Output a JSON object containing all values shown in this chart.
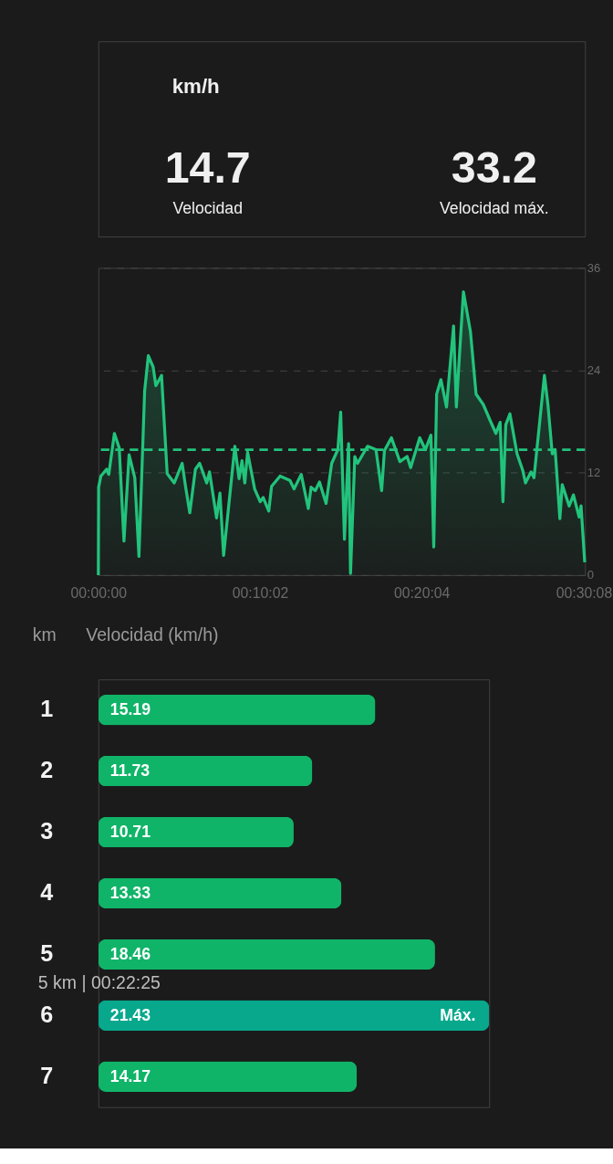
{
  "chart_data": [
    {
      "type": "area",
      "title": "km/h",
      "annotations": [
        "14.7",
        "Velocidad",
        "33.2",
        "Velocidad máx."
      ],
      "x": [
        0,
        0.0003,
        0.0026,
        0.0085,
        0.0108,
        0.0166,
        0.0216,
        0.0265,
        0.0318,
        0.0377,
        0.042,
        0.0479,
        0.0517,
        0.0567,
        0.0595,
        0.0654,
        0.0712,
        0.0785,
        0.0867,
        0.0902,
        0.0946,
        0.1004,
        0.1048,
        0.1121,
        0.115,
        0.1223,
        0.1258,
        0.1296,
        0.1412,
        0.1456,
        0.1486,
        0.1515,
        0.1544,
        0.1617,
        0.1675,
        0.1705,
        0.1763,
        0.1792,
        0.188,
        0.1982,
        0.2025,
        0.2099,
        0.2172,
        0.2201,
        0.2244,
        0.2288,
        0.2356,
        0.2414,
        0.2478,
        0.2507,
        0.2546,
        0.2589,
        0.2609,
        0.2653,
        0.2682,
        0.2785,
        0.2872,
        0.2931,
        0.296,
        0.3032,
        0.312,
        0.3194,
        0.3231,
        0.3325,
        0.3383,
        0.3441,
        0.347,
        0.35,
        0.3544,
        0.3602,
        0.3675,
        0.3704,
        0.3733,
        0.3777,
        0.385,
        0.3908,
        0.3982,
        0.4054,
        0.4113,
        0.4157,
        0.4186,
        0.4215,
        0.4258,
        0.4332,
        0.439,
        0.4419,
        0.4477,
        0.4507,
        0.4615,
        0.4652,
        0.4696,
        0.4726,
        0.4775,
        0.4799,
        0.4871,
        0.4915,
        0.4974,
        0.4994,
        0.5032
      ],
      "series": [
        {
          "color": "#22c37c",
          "values": [
            0,
            10.3,
            11.6,
            12.4,
            11.8,
            16.6,
            14.9,
            4.0,
            14.1,
            11.4,
            2.2,
            21.6,
            25.7,
            24.4,
            22.2,
            23.4,
            11.9,
            10.8,
            13.1,
            10.4,
            7.3,
            12.4,
            13.1,
            10.8,
            12.1,
            6.7,
            9.6,
            2.3,
            15.1,
            11.3,
            13.4,
            10.8,
            14.4,
            10.1,
            8.6,
            9.1,
            7.5,
            10.4,
            11.6,
            11.1,
            10.1,
            11.8,
            7.8,
            10.3,
            9.9,
            10.9,
            8.4,
            13.1,
            14.7,
            19.1,
            4.2,
            15.4,
            0.2,
            13.9,
            13.1,
            15.1,
            14.7,
            9.9,
            14.6,
            16.1,
            13.3,
            13.9,
            12.6,
            16.1,
            14.7,
            16.4,
            3.3,
            21.2,
            22.9,
            19.7,
            29.2,
            19.7,
            25.2,
            33.2,
            28.5,
            21.2,
            20.0,
            18.1,
            16.6,
            17.9,
            8.6,
            17.6,
            18.9,
            14.2,
            12.3,
            10.8,
            12.1,
            11.4,
            23.4,
            19.9,
            14.2,
            14.7,
            6.6,
            10.6,
            8.1,
            9.4,
            6.8,
            8.1,
            1.5
          ]
        }
      ],
      "xlim": [
        0,
        0.5035
      ],
      "xticks": [
        {
          "value": 0,
          "label": "00:00:00"
        },
        {
          "value": 0.16722,
          "label": "00:10:02"
        },
        {
          "value": 0.33444,
          "label": "00:20:04"
        },
        {
          "value": 0.50222,
          "label": "00:30:08"
        }
      ],
      "ylim": [
        0,
        36
      ],
      "yticks": [
        0,
        12,
        24,
        36
      ],
      "grid": "y",
      "ref_lines": [
        {
          "axis": "y",
          "value": 14.7,
          "color": "#22c37c",
          "line_style": "dashed"
        }
      ]
    },
    {
      "type": "bar",
      "orientation": "horizontal",
      "xlabel": "Velocidad (km/h)",
      "ylabel": "km",
      "categories": [
        "1",
        "2",
        "3",
        "4",
        "5",
        "6",
        "7"
      ],
      "values": [
        15.19,
        11.73,
        10.71,
        13.33,
        18.46,
        21.43,
        14.17
      ],
      "colors": [
        "#10b468",
        "#10b468",
        "#10b468",
        "#10b468",
        "#10b468",
        "#07a88c",
        "#10b468"
      ],
      "data_labels": true,
      "tick_labels": "y",
      "annotations": [
        "5 km | 00:22:25",
        {
          "text": "Máx.",
          "x": 21.43,
          "y": "6"
        }
      ]
    }
  ]
}
